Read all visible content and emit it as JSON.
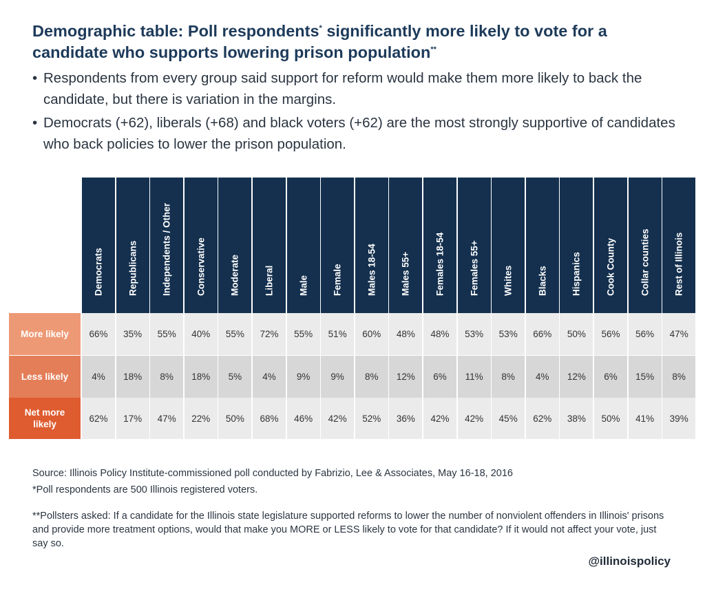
{
  "header": {
    "title_part1": "Demographic table: Poll respondents",
    "title_mark1": "*",
    "title_part2": " significantly more likely to vote for a candidate who supports lowering prison population",
    "title_mark2": "**"
  },
  "bullets": [
    "Respondents from every group said support for reform would make them more likely to back the candidate, but there is variation in the margins.",
    "Democrats (+62), liberals (+68) and black voters (+62) are the most strongly supportive of candidates who back policies to lower the prison population."
  ],
  "colors": {
    "header_bg": "#14304e",
    "more_likely": "#ee9975",
    "less_likely": "#e47e58",
    "net_more_likely": "#de5c30",
    "row_light": "#ebebeb",
    "row_dark": "#d7d7d7"
  },
  "chart_data": {
    "type": "table",
    "categories": [
      "Democrats",
      "Republicans",
      "Independents / Other",
      "Conservative",
      "Moderate",
      "Liberal",
      "Male",
      "Female",
      "Males 18-54",
      "Males 55+",
      "Females 18-54",
      "Females 55+",
      "Whites",
      "Blacks",
      "Hispanics",
      "Cook County",
      "Collar counties",
      "Rest of Illinois"
    ],
    "series": [
      {
        "name": "More likely",
        "values": [
          "66%",
          "35%",
          "55%",
          "40%",
          "55%",
          "72%",
          "55%",
          "51%",
          "60%",
          "48%",
          "48%",
          "53%",
          "53%",
          "66%",
          "50%",
          "56%",
          "56%",
          "47%"
        ]
      },
      {
        "name": "Less likely",
        "values": [
          "4%",
          "18%",
          "8%",
          "18%",
          "5%",
          "4%",
          "9%",
          "9%",
          "8%",
          "12%",
          "6%",
          "11%",
          "8%",
          "4%",
          "12%",
          "6%",
          "15%",
          "8%"
        ]
      },
      {
        "name": "Net more likely",
        "values": [
          "62%",
          "17%",
          "47%",
          "22%",
          "50%",
          "68%",
          "46%",
          "42%",
          "52%",
          "36%",
          "42%",
          "42%",
          "45%",
          "62%",
          "38%",
          "50%",
          "41%",
          "39%"
        ]
      }
    ]
  },
  "footer": {
    "source": "Source: Illinois Policy Institute-commissioned poll conducted by Fabrizio, Lee & Associates, May 16-18, 2016",
    "note1": "*Poll respondents are 500 Illinois registered voters.",
    "note2": "**Pollsters asked: If a candidate for the Illinois state legislature supported reforms to lower the number of nonviolent offenders in Illinois' prisons and provide more treatment options, would that make you MORE or LESS likely to vote for that candidate? If it would not affect your vote, just say so.",
    "handle": "@illinoispolicy"
  }
}
